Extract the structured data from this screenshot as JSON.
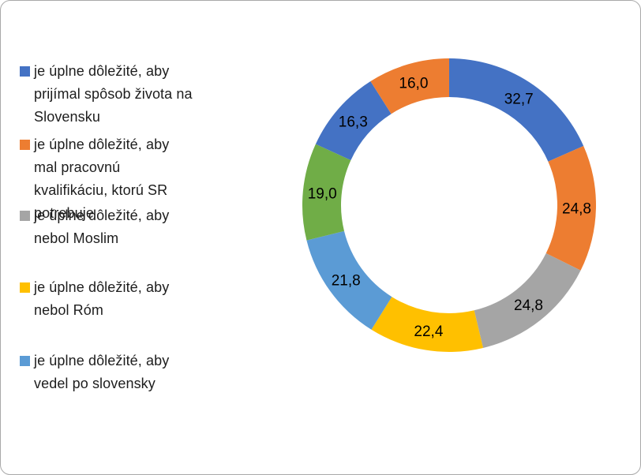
{
  "frame": {
    "background": "#ffffff",
    "border_color": "#a9a9a9"
  },
  "chart_data": {
    "type": "pie",
    "subtype": "donut",
    "title": "",
    "legend_position": "left",
    "hole_ratio": 0.74,
    "start_angle_deg": 0,
    "direction": "clockwise",
    "total": 177.8,
    "segments": [
      {
        "value": 32.7,
        "display": "32,7",
        "color": "#4472C4"
      },
      {
        "value": 24.8,
        "display": "24,8",
        "color": "#ED7D31"
      },
      {
        "value": 24.8,
        "display": "24,8",
        "color": "#A5A5A5"
      },
      {
        "value": 22.4,
        "display": "22,4",
        "color": "#FFC000"
      },
      {
        "value": 21.8,
        "display": "21,8",
        "color": "#5B9BD5"
      },
      {
        "value": 19.0,
        "display": "19,0",
        "color": "#70AD47"
      },
      {
        "value": 16.3,
        "display": "16,3",
        "color": "#4472C4"
      },
      {
        "value": 16.0,
        "display": "16,0",
        "color": "#ED7D31"
      }
    ],
    "legend": {
      "entries": [
        {
          "label": "je úplne dôležité, aby prijímal spôsob života na Slovensku",
          "color": "#4472C4"
        },
        {
          "label": "je úplne dôležité, aby mal pracovnú kvalifikáciu, ktorú SR potrebuje",
          "color": "#ED7D31"
        },
        {
          "label": "je úplne dôležité, aby nebol Moslim",
          "color": "#A5A5A5"
        },
        {
          "label": "je úplne dôležité, aby nebol Róm",
          "color": "#FFC000"
        },
        {
          "label": "je úplne dôležité, aby vedel po slovensky",
          "color": "#5B9BD5"
        }
      ]
    }
  }
}
